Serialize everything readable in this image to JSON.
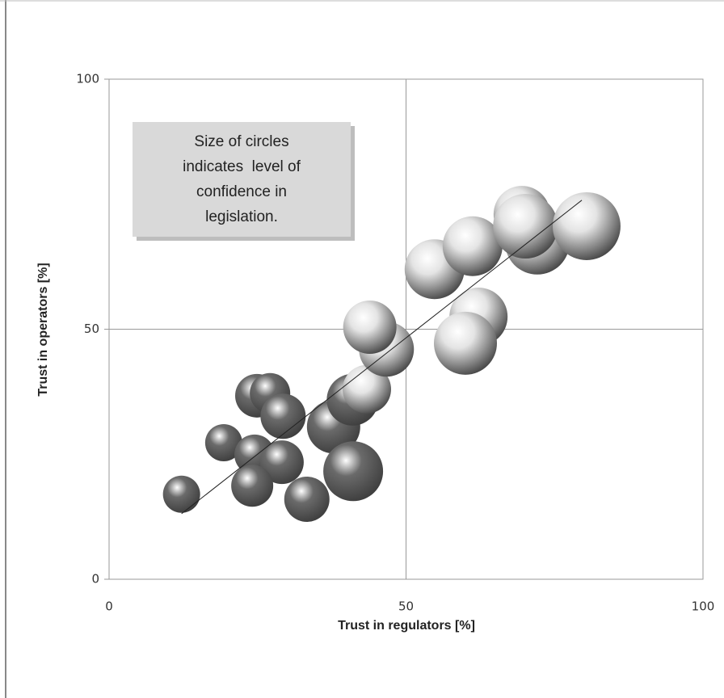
{
  "chart_data": {
    "type": "bubble",
    "x_label": "Trust in regulators [%]",
    "y_label": "Trust in operators [%]",
    "annotation": [
      "Size of circles",
      "indicates  level of",
      "confidence in",
      "legislation."
    ],
    "xlim": [
      0,
      100
    ],
    "ylim": [
      0,
      100
    ],
    "xticks": [
      0,
      50,
      100
    ],
    "yticks": [
      0,
      50,
      100
    ],
    "grid": true,
    "series": [
      {
        "color": "#6a6a6a",
        "x": [
          12.2,
          19.3,
          24.9,
          27.1,
          29.3,
          24.5,
          29.1,
          24.1,
          33.3,
          37.8,
          41.0,
          41.1
        ],
        "y": [
          17.0,
          27.3,
          36.7,
          37.2,
          32.6,
          24.9,
          23.4,
          18.7,
          16.0,
          30.5,
          35.9,
          21.6
        ],
        "sizes": [
          23,
          23,
          27,
          25,
          28,
          25,
          27,
          26,
          28,
          33,
          32,
          37
        ]
      },
      {
        "color": "#e4e4e4",
        "x": [
          43.4,
          46.7,
          43.9,
          54.8,
          62.2,
          60.0,
          61.2,
          69.5,
          72.1,
          70.1,
          80.4
        ],
        "y": [
          38.0,
          46.0,
          50.4,
          62.0,
          52.5,
          47.2,
          66.6,
          73.0,
          67.4,
          70.6,
          70.6
        ],
        "sizes": [
          30,
          34,
          33,
          37,
          36,
          39,
          37,
          35,
          40,
          40,
          42
        ]
      }
    ],
    "trendline": {
      "color": "#222222",
      "x": [
        12.2,
        79.6
      ],
      "y": [
        13.1,
        75.8
      ]
    }
  }
}
